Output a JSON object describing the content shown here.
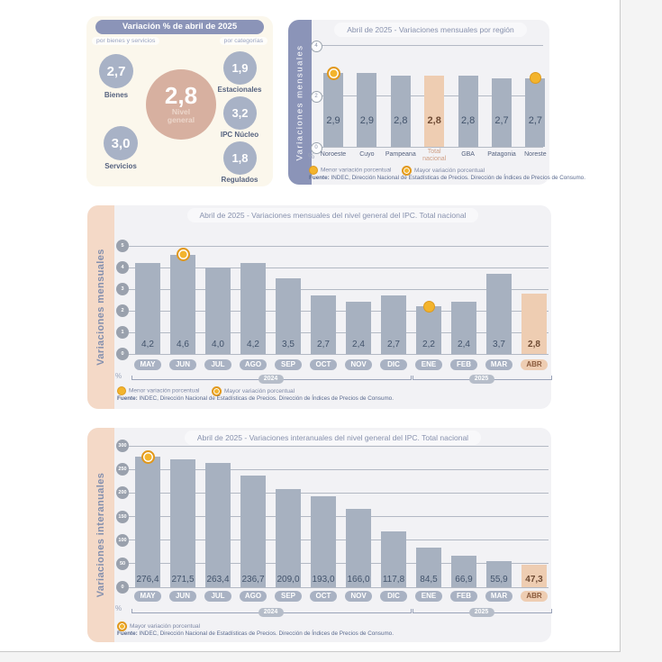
{
  "page": {
    "panelA": {
      "header": "Variación % de abril de 2025",
      "left_group": "por bienes y servicios",
      "right_group": "por categorías",
      "bubbles": {
        "bienes": {
          "value": "2,7",
          "label": "Bienes"
        },
        "servicios": {
          "value": "3,0",
          "label": "Servicios"
        },
        "nivel_general": {
          "value": "2,8",
          "label_line1": "Nivel",
          "label_line2": "general"
        },
        "estacionales": {
          "value": "1,9",
          "label": "Estacionales"
        },
        "ipc_nucleo": {
          "value": "3,2",
          "label": "IPC Núcleo"
        },
        "regulados": {
          "value": "1,8",
          "label": "Regulados"
        }
      }
    },
    "source_bold": "Fuente:",
    "source_text": "INDEC, Dirección Nacional de Estadísticas de Precios. Dirección de Índices de Precios de Consumo."
  },
  "chart_data": [
    {
      "id": "region",
      "type": "bar",
      "title": "Abril de 2025 - Variaciones mensuales por región",
      "ylabel": "Variaciones  mensuales",
      "unit": "%",
      "categories": [
        "Noroeste",
        "Cuyo",
        "Pampeana",
        "Total nacional",
        "GBA",
        "Patagonia",
        "Noreste"
      ],
      "values": [
        2.9,
        2.9,
        2.8,
        2.8,
        2.8,
        2.7,
        2.7
      ],
      "value_labels": [
        "2,9",
        "2,9",
        "2,8",
        "2,8",
        "2,8",
        "2,7",
        "2,7"
      ],
      "ylim": [
        0,
        4
      ],
      "yticks": [
        0,
        2,
        4
      ],
      "grid": true,
      "legend_position": "bottom",
      "highlight_index": 3,
      "max_marker_index": 0,
      "min_marker_index": 6,
      "legend": [
        "Menor variación porcentual",
        "Mayor variación porcentual"
      ]
    },
    {
      "id": "monthly",
      "type": "bar",
      "title": "Abril de 2025 - Variaciones mensuales del nivel general del IPC. Total nacional",
      "ylabel": "Variaciones mensuales",
      "unit": "%",
      "categories": [
        "MAY",
        "JUN",
        "JUL",
        "AGO",
        "SEP",
        "OCT",
        "NOV",
        "DIC",
        "ENE",
        "FEB",
        "MAR",
        "ABR"
      ],
      "values": [
        4.2,
        4.6,
        4.0,
        4.2,
        3.5,
        2.7,
        2.4,
        2.7,
        2.2,
        2.4,
        3.7,
        2.8
      ],
      "value_labels": [
        "4,2",
        "4,6",
        "4,0",
        "4,2",
        "3,5",
        "2,7",
        "2,4",
        "2,7",
        "2,2",
        "2,4",
        "3,7",
        "2,8"
      ],
      "ylim": [
        0,
        5
      ],
      "yticks": [
        0,
        1,
        2,
        3,
        4,
        5
      ],
      "grid": true,
      "legend_position": "bottom",
      "highlight_index": 11,
      "max_marker_index": 1,
      "min_marker_index": 8,
      "year_groups": [
        {
          "label": "2024",
          "start": 0,
          "end": 7
        },
        {
          "label": "2025",
          "start": 8,
          "end": 11
        }
      ],
      "legend": [
        "Menor variación porcentual",
        "Mayor variación porcentual"
      ]
    },
    {
      "id": "interannual",
      "type": "bar",
      "title": "Abril de 2025 - Variaciones interanuales del nivel general del IPC. Total nacional",
      "ylabel": "Variaciones interanuales",
      "unit": "%",
      "categories": [
        "MAY",
        "JUN",
        "JUL",
        "AGO",
        "SEP",
        "OCT",
        "NOV",
        "DIC",
        "ENE",
        "FEB",
        "MAR",
        "ABR"
      ],
      "values": [
        276.4,
        271.5,
        263.4,
        236.7,
        209.0,
        193.0,
        166.0,
        117.8,
        84.5,
        66.9,
        55.9,
        47.3
      ],
      "value_labels": [
        "276,4",
        "271,5",
        "263,4",
        "236,7",
        "209,0",
        "193,0",
        "166,0",
        "117,8",
        "84,5",
        "66,9",
        "55,9",
        "47,3"
      ],
      "ylim": [
        0,
        300
      ],
      "yticks": [
        0,
        50,
        100,
        150,
        200,
        250,
        300
      ],
      "grid": true,
      "legend_position": "bottom",
      "highlight_index": 11,
      "max_marker_index": 0,
      "year_groups": [
        {
          "label": "2024",
          "start": 0,
          "end": 7
        },
        {
          "label": "2025",
          "start": 8,
          "end": 11
        }
      ],
      "legend": [
        "Mayor variación porcentual"
      ]
    }
  ],
  "colors": {
    "bar": "#a7b1c0",
    "bar_highlight": "#eecdb2",
    "header_blue": "#8b94b8",
    "strip_salmon": "#f4d9c7",
    "bubble_blue": "#a8b2c6",
    "bubble_salmon": "#d7b0a0",
    "marker_yellow": "#f3b42d",
    "panel_cream": "#fbf7ec",
    "panel_gray": "#f2f2f5"
  }
}
